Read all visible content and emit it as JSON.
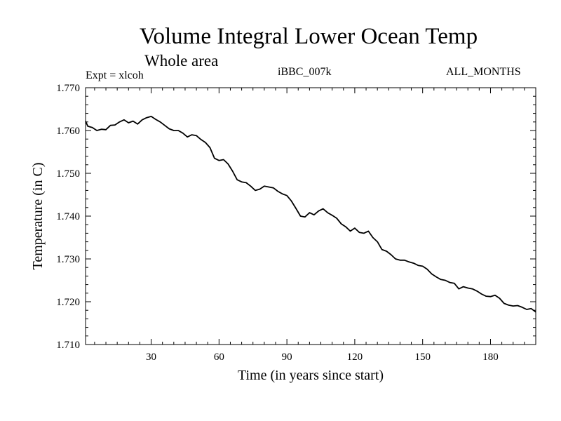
{
  "chart_data": {
    "type": "line",
    "title": "Volume Integral Lower Ocean Temp",
    "subtitle": "Whole area",
    "expt_label": "Expt = xlcoh",
    "run_label": "iBBC_007k",
    "period_label": "ALL_MONTHS",
    "xlabel": "Time (in years since start)",
    "ylabel": "Temperature (in C)",
    "xlim": [
      1,
      200
    ],
    "ylim": [
      1.71,
      1.77
    ],
    "xticks": [
      30,
      60,
      90,
      120,
      150,
      180
    ],
    "xtick_labels": [
      "30",
      "60",
      "90",
      "120",
      "150",
      "180"
    ],
    "yticks": [
      1.71,
      1.72,
      1.73,
      1.74,
      1.75,
      1.76,
      1.77
    ],
    "ytick_labels": [
      "1.710",
      "1.720",
      "1.730",
      "1.740",
      "1.750",
      "1.760",
      "1.770"
    ],
    "series": [
      {
        "name": "Volume Integral Lower Ocean Temp",
        "x": [
          1,
          2,
          4,
          6,
          8,
          10,
          12,
          14,
          16,
          18,
          20,
          22,
          24,
          26,
          28,
          30,
          32,
          34,
          36,
          38,
          40,
          42,
          44,
          46,
          48,
          50,
          52,
          54,
          56,
          58,
          60,
          62,
          64,
          66,
          68,
          70,
          72,
          74,
          76,
          78,
          80,
          82,
          84,
          86,
          88,
          90,
          92,
          94,
          96,
          98,
          100,
          102,
          104,
          106,
          108,
          110,
          112,
          114,
          116,
          118,
          120,
          122,
          124,
          126,
          128,
          130,
          132,
          134,
          136,
          138,
          140,
          142,
          144,
          146,
          148,
          150,
          152,
          154,
          156,
          158,
          160,
          162,
          164,
          166,
          168,
          170,
          172,
          174,
          176,
          178,
          180,
          182,
          184,
          186,
          188,
          190,
          192,
          194,
          196,
          198,
          200
        ],
        "values": [
          1.7622,
          1.761,
          1.7607,
          1.76,
          1.7603,
          1.7602,
          1.7612,
          1.7613,
          1.762,
          1.7625,
          1.7618,
          1.7622,
          1.7615,
          1.7625,
          1.763,
          1.7633,
          1.7626,
          1.762,
          1.7612,
          1.7604,
          1.76,
          1.76,
          1.7594,
          1.7585,
          1.759,
          1.7588,
          1.7579,
          1.7572,
          1.756,
          1.7535,
          1.753,
          1.7532,
          1.7522,
          1.7505,
          1.7485,
          1.748,
          1.7478,
          1.747,
          1.746,
          1.7463,
          1.747,
          1.7468,
          1.7466,
          1.7458,
          1.7452,
          1.7448,
          1.7435,
          1.7418,
          1.74,
          1.7398,
          1.7408,
          1.7403,
          1.7412,
          1.7417,
          1.7408,
          1.7402,
          1.7395,
          1.7382,
          1.7375,
          1.7365,
          1.7372,
          1.7362,
          1.736,
          1.7365,
          1.735,
          1.734,
          1.7322,
          1.7318,
          1.731,
          1.73,
          1.7297,
          1.7297,
          1.7293,
          1.729,
          1.7285,
          1.7283,
          1.7276,
          1.7265,
          1.7258,
          1.7252,
          1.725,
          1.7245,
          1.7243,
          1.723,
          1.7235,
          1.7232,
          1.723,
          1.7225,
          1.7218,
          1.7213,
          1.7212,
          1.7215,
          1.7208,
          1.7196,
          1.7192,
          1.719,
          1.7191,
          1.7187,
          1.7182,
          1.7184,
          1.7176
        ]
      }
    ],
    "grid": false,
    "line_color": "#000000"
  }
}
